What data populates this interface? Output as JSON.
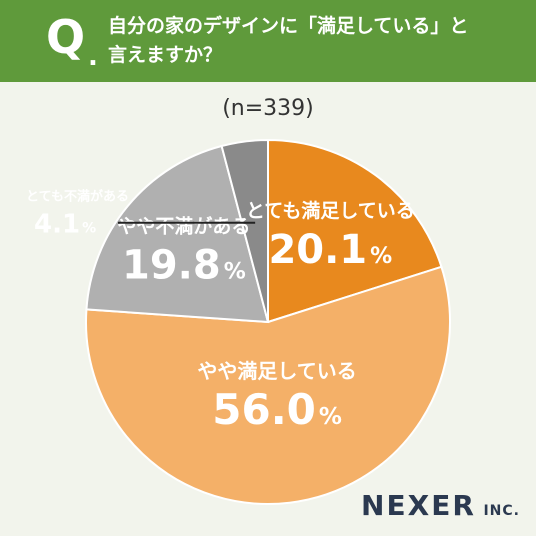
{
  "header": {
    "q_letter": "Q",
    "q_dot": ".",
    "question_line1": "自分の家のデザインに「満足している」と",
    "question_line2": "言えますか？"
  },
  "sample_label": "(n=339)",
  "colors": {
    "header_bg": "#5f9a3b",
    "very_satisfied": "#e8891e",
    "somewhat_satisfied": "#f4b068",
    "somewhat_unsatisfied": "#b0b0b0",
    "very_unsatisfied": "#8a8a8a"
  },
  "chart_data": {
    "type": "pie",
    "title": "自分の家のデザインに「満足している」と言えますか？",
    "categories": [
      "とても満足している",
      "やや満足している",
      "やや不満がある",
      "とても不満がある"
    ],
    "values": [
      20.1,
      56.0,
      19.8,
      4.1
    ],
    "value_labels": [
      "20.1",
      "56.0",
      "19.8",
      "4.1"
    ],
    "unit": "%",
    "start_angle_deg": 0,
    "direction": "clockwise"
  },
  "logo": {
    "main": "NEXER",
    "sub": "INC."
  }
}
